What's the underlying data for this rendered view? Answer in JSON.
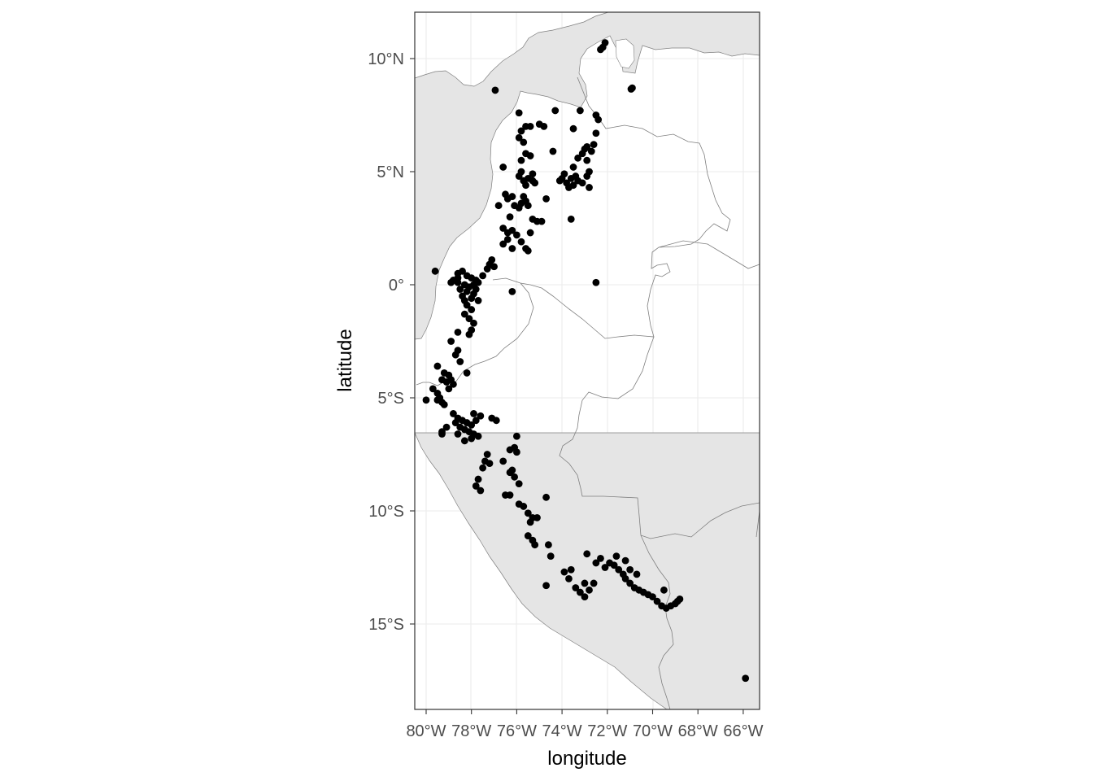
{
  "chart_data": {
    "type": "scatter",
    "projection": "geographic",
    "xlabel": "longitude",
    "ylabel": "latitude",
    "xlim": [
      -80.5,
      -65.3
    ],
    "ylim": [
      -18.8,
      12.0
    ],
    "x_ticks": [
      {
        "value": -80,
        "label": "80°W"
      },
      {
        "value": -78,
        "label": "78°W"
      },
      {
        "value": -76,
        "label": "76°W"
      },
      {
        "value": -74,
        "label": "74°W"
      },
      {
        "value": -72,
        "label": "72°W"
      },
      {
        "value": -70,
        "label": "70°W"
      },
      {
        "value": -68,
        "label": "68°W"
      },
      {
        "value": -66,
        "label": "66°W"
      }
    ],
    "y_ticks": [
      {
        "value": 10,
        "label": "10°N"
      },
      {
        "value": 5,
        "label": "5°N"
      },
      {
        "value": 0,
        "label": "0°"
      },
      {
        "value": -5,
        "label": "5°S"
      },
      {
        "value": -10,
        "label": "10°S"
      },
      {
        "value": -15,
        "label": "15°S"
      }
    ],
    "grid": true,
    "legend": "none",
    "colors": {
      "land": "#e5e5e5",
      "border": "#7f7f7f",
      "points": "#000000",
      "grid": "#ebebeb",
      "panel_border": "#333333"
    },
    "points": [
      [
        -72.1,
        10.7
      ],
      [
        -72.2,
        10.5
      ],
      [
        -72.3,
        10.4
      ],
      [
        -70.9,
        8.7
      ],
      [
        -70.95,
        8.65
      ],
      [
        -76.95,
        8.6
      ],
      [
        -75.9,
        7.6
      ],
      [
        -74.3,
        7.7
      ],
      [
        -73.2,
        7.7
      ],
      [
        -72.5,
        7.5
      ],
      [
        -72.4,
        7.3
      ],
      [
        -75.6,
        7.0
      ],
      [
        -75.4,
        7.0
      ],
      [
        -75.0,
        7.1
      ],
      [
        -74.8,
        7.0
      ],
      [
        -75.8,
        6.8
      ],
      [
        -75.9,
        6.5
      ],
      [
        -75.7,
        6.3
      ],
      [
        -73.5,
        6.9
      ],
      [
        -72.5,
        6.7
      ],
      [
        -73.0,
        6.0
      ],
      [
        -72.9,
        6.1
      ],
      [
        -72.6,
        6.2
      ],
      [
        -72.7,
        5.9
      ],
      [
        -73.1,
        5.8
      ],
      [
        -73.3,
        5.6
      ],
      [
        -72.9,
        5.5
      ],
      [
        -74.4,
        5.9
      ],
      [
        -75.6,
        5.8
      ],
      [
        -75.4,
        5.7
      ],
      [
        -75.8,
        5.5
      ],
      [
        -76.6,
        5.2
      ],
      [
        -75.8,
        5.0
      ],
      [
        -75.9,
        4.8
      ],
      [
        -75.7,
        4.6
      ],
      [
        -75.5,
        4.7
      ],
      [
        -75.3,
        4.6
      ],
      [
        -75.2,
        4.5
      ],
      [
        -75.6,
        4.4
      ],
      [
        -75.3,
        4.9
      ],
      [
        -74.1,
        4.6
      ],
      [
        -74.0,
        4.7
      ],
      [
        -73.8,
        4.5
      ],
      [
        -73.6,
        4.7
      ],
      [
        -73.4,
        4.8
      ],
      [
        -73.9,
        4.9
      ],
      [
        -73.5,
        5.2
      ],
      [
        -73.3,
        4.6
      ],
      [
        -73.1,
        4.5
      ],
      [
        -72.9,
        4.8
      ],
      [
        -72.8,
        5.0
      ],
      [
        -73.7,
        4.3
      ],
      [
        -73.5,
        4.4
      ],
      [
        -72.8,
        4.3
      ],
      [
        -76.5,
        4.0
      ],
      [
        -76.4,
        3.8
      ],
      [
        -76.2,
        3.9
      ],
      [
        -75.8,
        3.6
      ],
      [
        -75.6,
        3.7
      ],
      [
        -75.5,
        3.5
      ],
      [
        -75.9,
        3.4
      ],
      [
        -76.1,
        3.5
      ],
      [
        -75.7,
        3.9
      ],
      [
        -74.7,
        3.8
      ],
      [
        -76.8,
        3.5
      ],
      [
        -76.3,
        3.0
      ],
      [
        -75.3,
        2.9
      ],
      [
        -75.1,
        2.8
      ],
      [
        -74.9,
        2.8
      ],
      [
        -73.6,
        2.9
      ],
      [
        -76.6,
        2.5
      ],
      [
        -76.4,
        2.3
      ],
      [
        -76.2,
        2.4
      ],
      [
        -76.0,
        2.2
      ],
      [
        -76.4,
        2.0
      ],
      [
        -76.6,
        1.8
      ],
      [
        -76.2,
        1.6
      ],
      [
        -75.6,
        1.6
      ],
      [
        -75.5,
        1.5
      ],
      [
        -75.4,
        2.3
      ],
      [
        -75.8,
        1.9
      ],
      [
        -77.1,
        1.1
      ],
      [
        -77.2,
        0.9
      ],
      [
        -77.0,
        0.8
      ],
      [
        -77.3,
        0.7
      ],
      [
        -78.6,
        0.5
      ],
      [
        -78.4,
        0.6
      ],
      [
        -78.2,
        0.4
      ],
      [
        -78.0,
        0.3
      ],
      [
        -77.8,
        0.2
      ],
      [
        -78.6,
        0.1
      ],
      [
        -78.3,
        0.0
      ],
      [
        -78.1,
        -0.1
      ],
      [
        -77.9,
        0.0
      ],
      [
        -77.7,
        0.1
      ],
      [
        -78.5,
        -0.2
      ],
      [
        -78.2,
        -0.3
      ],
      [
        -77.9,
        -0.4
      ],
      [
        -77.8,
        -0.2
      ],
      [
        -78.4,
        -0.5
      ],
      [
        -78.3,
        -0.7
      ],
      [
        -78.0,
        -0.6
      ],
      [
        -78.2,
        -0.9
      ],
      [
        -78.0,
        -1.1
      ],
      [
        -78.3,
        -1.3
      ],
      [
        -78.1,
        -1.5
      ],
      [
        -77.9,
        -1.7
      ],
      [
        -77.7,
        -0.7
      ],
      [
        -78.6,
        0.3
      ],
      [
        -78.8,
        0.2
      ],
      [
        -78.9,
        0.1
      ],
      [
        -79.6,
        0.6
      ],
      [
        -77.5,
        0.4
      ],
      [
        -76.2,
        -0.3
      ],
      [
        -78.0,
        -2.0
      ],
      [
        -78.1,
        -2.2
      ],
      [
        -78.6,
        -2.1
      ],
      [
        -78.9,
        -2.5
      ],
      [
        -78.6,
        -2.9
      ],
      [
        -78.7,
        -3.1
      ],
      [
        -78.5,
        -3.4
      ],
      [
        -78.2,
        -3.9
      ],
      [
        -79.5,
        -3.6
      ],
      [
        -79.2,
        -3.9
      ],
      [
        -79.0,
        -4.0
      ],
      [
        -78.9,
        -4.2
      ],
      [
        -79.1,
        -4.3
      ],
      [
        -79.3,
        -4.2
      ],
      [
        -78.8,
        -4.4
      ],
      [
        -79.0,
        -4.6
      ],
      [
        -79.5,
        -4.8
      ],
      [
        -79.7,
        -4.6
      ],
      [
        -79.4,
        -5.0
      ],
      [
        -79.3,
        -5.2
      ],
      [
        -79.2,
        -5.3
      ],
      [
        -80.0,
        -5.1
      ],
      [
        -79.5,
        -5.1
      ],
      [
        -78.8,
        -5.7
      ],
      [
        -78.6,
        -5.9
      ],
      [
        -78.4,
        -6.0
      ],
      [
        -78.2,
        -6.1
      ],
      [
        -78.0,
        -6.2
      ],
      [
        -77.8,
        -6.0
      ],
      [
        -77.6,
        -5.8
      ],
      [
        -77.9,
        -5.7
      ],
      [
        -78.7,
        -6.1
      ],
      [
        -78.5,
        -6.3
      ],
      [
        -78.3,
        -6.4
      ],
      [
        -78.1,
        -6.5
      ],
      [
        -77.9,
        -6.6
      ],
      [
        -77.7,
        -6.7
      ],
      [
        -78.0,
        -6.8
      ],
      [
        -78.3,
        -6.9
      ],
      [
        -78.6,
        -6.6
      ],
      [
        -79.1,
        -6.3
      ],
      [
        -79.3,
        -6.5
      ],
      [
        -79.3,
        -6.6
      ],
      [
        -77.1,
        -5.9
      ],
      [
        -76.9,
        -6.0
      ],
      [
        -77.3,
        -7.5
      ],
      [
        -77.4,
        -7.8
      ],
      [
        -77.2,
        -7.9
      ],
      [
        -77.5,
        -8.1
      ],
      [
        -77.7,
        -8.6
      ],
      [
        -77.8,
        -8.9
      ],
      [
        -77.6,
        -9.1
      ],
      [
        -76.6,
        -7.8
      ],
      [
        -76.0,
        -6.7
      ],
      [
        -76.1,
        -7.2
      ],
      [
        -76.3,
        -7.3
      ],
      [
        -76.0,
        -7.4
      ],
      [
        -76.2,
        -8.2
      ],
      [
        -76.1,
        -8.5
      ],
      [
        -75.9,
        -8.8
      ],
      [
        -76.3,
        -8.3
      ],
      [
        -76.5,
        -9.3
      ],
      [
        -76.3,
        -9.3
      ],
      [
        -75.9,
        -9.7
      ],
      [
        -75.7,
        -9.8
      ],
      [
        -75.5,
        -10.1
      ],
      [
        -75.3,
        -10.3
      ],
      [
        -75.4,
        -10.5
      ],
      [
        -75.1,
        -10.3
      ],
      [
        -74.7,
        -9.4
      ],
      [
        -75.5,
        -11.1
      ],
      [
        -75.3,
        -11.3
      ],
      [
        -75.2,
        -11.5
      ],
      [
        -74.6,
        -11.5
      ],
      [
        -74.5,
        -12.0
      ],
      [
        -73.9,
        -12.7
      ],
      [
        -73.6,
        -12.6
      ],
      [
        -73.7,
        -13.0
      ],
      [
        -73.4,
        -13.4
      ],
      [
        -73.2,
        -13.6
      ],
      [
        -73.0,
        -13.8
      ],
      [
        -72.8,
        -13.5
      ],
      [
        -72.6,
        -13.2
      ],
      [
        -72.5,
        -12.3
      ],
      [
        -72.3,
        -12.1
      ],
      [
        -72.1,
        -12.5
      ],
      [
        -71.9,
        -12.3
      ],
      [
        -71.7,
        -12.4
      ],
      [
        -71.5,
        -12.6
      ],
      [
        -71.3,
        -12.8
      ],
      [
        -71.2,
        -13.0
      ],
      [
        -71.0,
        -13.2
      ],
      [
        -70.8,
        -13.4
      ],
      [
        -70.6,
        -13.5
      ],
      [
        -70.4,
        -13.6
      ],
      [
        -70.2,
        -13.7
      ],
      [
        -70.0,
        -13.8
      ],
      [
        -69.8,
        -14.0
      ],
      [
        -69.6,
        -14.2
      ],
      [
        -69.4,
        -14.3
      ],
      [
        -69.2,
        -14.2
      ],
      [
        -69.0,
        -14.1
      ],
      [
        -68.9,
        -14.0
      ],
      [
        -68.8,
        -13.9
      ],
      [
        -69.5,
        -13.5
      ],
      [
        -71.6,
        -12.0
      ],
      [
        -71.2,
        -12.2
      ],
      [
        -71.0,
        -12.6
      ],
      [
        -70.7,
        -12.8
      ],
      [
        -72.9,
        -11.9
      ],
      [
        -73.0,
        -13.2
      ],
      [
        -74.7,
        -13.3
      ],
      [
        -65.9,
        -17.4
      ],
      [
        -72.5,
        0.1
      ]
    ]
  }
}
